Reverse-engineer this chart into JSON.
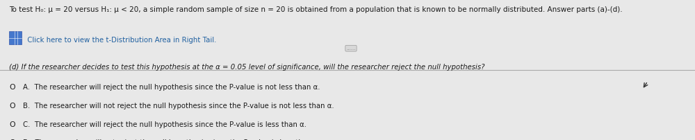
{
  "bg_color": "#e8e8e8",
  "white_color": "#ffffff",
  "header_text": "To test H₀: μ = 20 versus H₁: μ < 20, a simple random sample of size n = 20 is obtained from a population that is known to be normally distributed. Answer parts (a)-(d).",
  "click_icon": "⊞",
  "click_text": " Click here to view the t-Distribution Area in Right Tail.",
  "question_text": "(d) If the researcher decides to test this hypothesis at the α = 0.05 level of significance, will the researcher reject the null hypothesis?",
  "option_a": "A.  The researcher will reject the null hypothesis since the P-value is not less than α.",
  "option_b": "B.  The researcher will not reject the null hypothesis since the P-value is not less than α.",
  "option_c": "C.  The researcher will reject the null hypothesis since the P-value is less than α.",
  "option_d": "D.  The researcher will not reject the null hypothesis since the P-value is less than α.",
  "text_color": "#1a1a1a",
  "link_color": "#2060a0",
  "icon_color": "#3366cc",
  "separator_color": "#aaaaaa",
  "dots_color": "#888888",
  "header_fontsize": 7.5,
  "body_fontsize": 7.3,
  "question_fontsize": 7.3,
  "option_fontsize": 7.3
}
